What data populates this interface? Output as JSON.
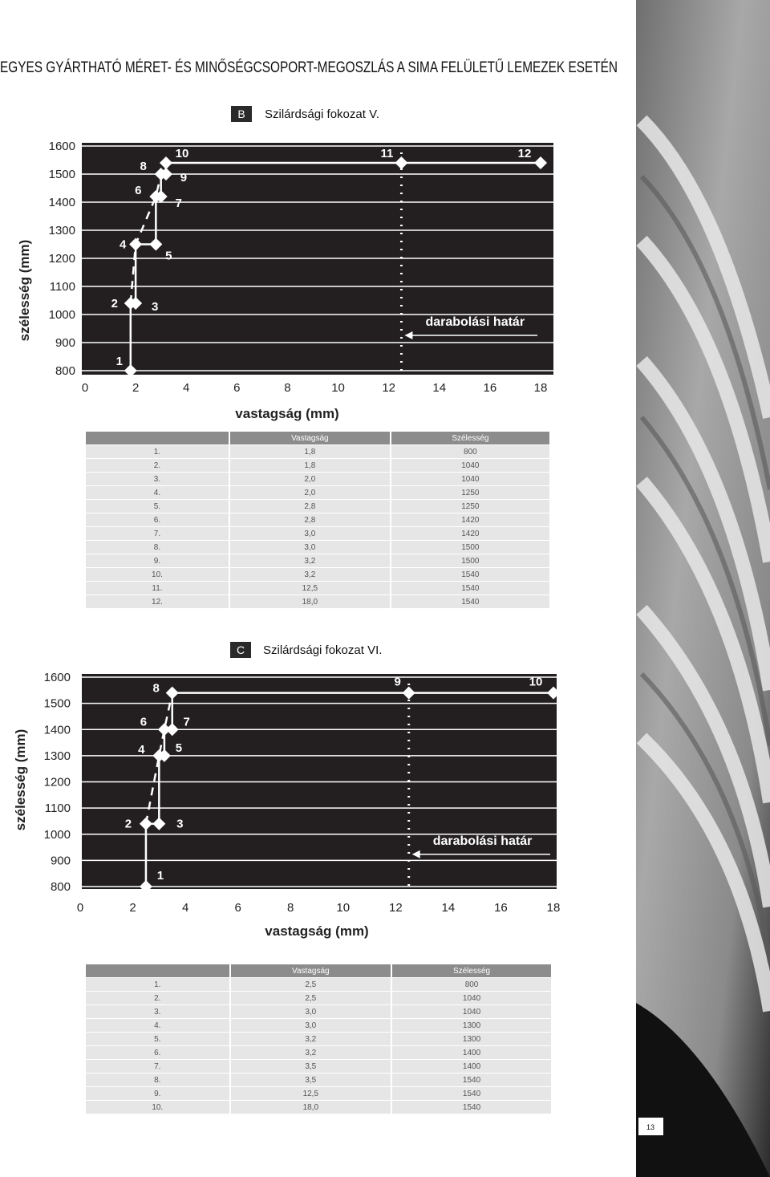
{
  "title": "EGYES GYÁRTHATÓ MÉRET- ÉS MINŐSÉGCSOPORT-MEGOSZLÁS A SIMA FELÜLETŰ LEMEZEK ESETÉN",
  "sections": [
    {
      "letter": "B",
      "label": "Szilárdsági fokozat V."
    },
    {
      "letter": "C",
      "label": "Szilárdsági fokozat VI."
    }
  ],
  "chart_data": [
    {
      "type": "line",
      "xlabel": "vastagság (mm)",
      "ylabel": "szélesség (mm)",
      "x": [
        1.8,
        1.8,
        2.0,
        2.0,
        2.8,
        2.8,
        3.0,
        3.0,
        3.2,
        3.2,
        12.5,
        18.0
      ],
      "values": [
        800,
        1040,
        1040,
        1250,
        1250,
        1420,
        1420,
        1500,
        1500,
        1540,
        1540,
        1540
      ],
      "point_labels": [
        "1",
        "2",
        "3",
        "4",
        "5",
        "6",
        "7",
        "8",
        "9",
        "10",
        "11",
        "12"
      ],
      "xlim": [
        0,
        18
      ],
      "ylim": [
        800,
        1600
      ],
      "xticks": [
        0,
        2,
        4,
        6,
        8,
        10,
        12,
        14,
        16,
        18
      ],
      "yticks": [
        800,
        900,
        1000,
        1100,
        1200,
        1300,
        1400,
        1500,
        1600
      ],
      "grid": true,
      "color": "#ffffff",
      "annotation": {
        "text": "darabolási határ",
        "x": 12.5
      }
    },
    {
      "type": "line",
      "xlabel": "vastagság (mm)",
      "ylabel": "szélesség (mm)",
      "x": [
        2.5,
        2.5,
        3.0,
        3.0,
        3.2,
        3.2,
        3.5,
        3.5,
        12.5,
        18.0
      ],
      "values": [
        800,
        1040,
        1040,
        1300,
        1300,
        1400,
        1400,
        1540,
        1540,
        1540
      ],
      "point_labels": [
        "1",
        "2",
        "3",
        "4",
        "5",
        "6",
        "7",
        "8",
        "9",
        "10"
      ],
      "xlim": [
        0,
        18
      ],
      "ylim": [
        800,
        1600
      ],
      "xticks": [
        0,
        2,
        4,
        6,
        8,
        10,
        12,
        14,
        16,
        18
      ],
      "yticks": [
        800,
        900,
        1000,
        1100,
        1200,
        1300,
        1400,
        1500,
        1600
      ],
      "grid": true,
      "color": "#ffffff",
      "annotation": {
        "text": "darabolási határ",
        "x": 12.5
      }
    }
  ],
  "tables": [
    {
      "header": [
        "Vastagság",
        "Szélesség"
      ],
      "rows": [
        [
          "1.",
          "1,8",
          "800"
        ],
        [
          "2.",
          "1,8",
          "1040"
        ],
        [
          "3.",
          "2,0",
          "1040"
        ],
        [
          "4.",
          "2,0",
          "1250"
        ],
        [
          "5.",
          "2,8",
          "1250"
        ],
        [
          "6.",
          "2,8",
          "1420"
        ],
        [
          "7.",
          "3,0",
          "1420"
        ],
        [
          "8.",
          "3,0",
          "1500"
        ],
        [
          "9.",
          "3,2",
          "1500"
        ],
        [
          "10.",
          "3,2",
          "1540"
        ],
        [
          "11.",
          "12,5",
          "1540"
        ],
        [
          "12.",
          "18,0",
          "1540"
        ]
      ]
    },
    {
      "header": [
        "Vastagság",
        "Szélesség"
      ],
      "rows": [
        [
          "1.",
          "2,5",
          "800"
        ],
        [
          "2.",
          "2,5",
          "1040"
        ],
        [
          "3.",
          "3,0",
          "1040"
        ],
        [
          "4.",
          "3,0",
          "1300"
        ],
        [
          "5.",
          "3,2",
          "1300"
        ],
        [
          "6.",
          "3,2",
          "1400"
        ],
        [
          "7.",
          "3,5",
          "1400"
        ],
        [
          "8.",
          "3,5",
          "1540"
        ],
        [
          "9.",
          "12,5",
          "1540"
        ],
        [
          "10.",
          "18,0",
          "1540"
        ]
      ]
    }
  ],
  "page_number": "13"
}
